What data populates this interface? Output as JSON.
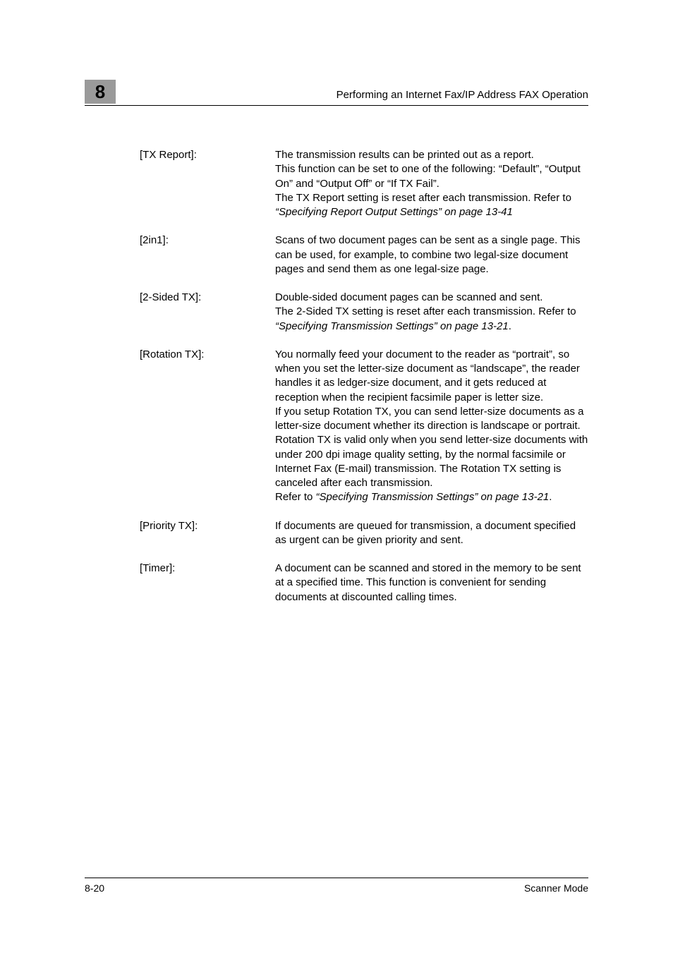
{
  "chapter_number": "8",
  "header_title": "Performing an Internet Fax/IP Address FAX Operation",
  "entries": [
    {
      "term": "[TX Report]:",
      "desc_html": "The transmission results can be printed out as a report.<br>This function can be set to one of the following: “Default”, “Output On” and “Output Off” or “If TX Fail”.<br>The TX Report setting is reset after each transmission. Refer to <span class=\"italic\">“Specifying Report Output Settings” on page 13-41</span>"
    },
    {
      "term": "[2in1]:",
      "desc_html": "Scans of two document pages can be sent as a single page. This can be used, for example, to combine two legal-size document pages and send them as one legal-size page."
    },
    {
      "term": "[2-Sided TX]:",
      "desc_html": "Double-sided document pages can be scanned and sent.<br>The 2-Sided TX setting is reset after each transmission. Refer to <span class=\"italic\">“Specifying Transmission Settings” on page 13-21</span>."
    },
    {
      "term": "[Rotation TX]:",
      "desc_html": "You normally feed your document to the reader as “portrait”, so when you set the letter-size document as “landscape”, the reader handles it as ledger-size document, and it gets reduced at reception when the recipient facsimile paper is letter size.<br>If you setup Rotation TX, you can send letter-size documents as a letter-size document whether its direction is landscape or portrait.  Rotation TX is valid only when you send letter-size documents with under 200 dpi image quality setting, by the normal facsimile or Internet Fax (E-mail) transmission.  The Rotation TX setting is canceled after each transmission.<br>Refer to <span class=\"italic\">“Specifying Transmission Settings” on page 13-21</span>."
    },
    {
      "term": "[Priority TX]:",
      "desc_html": "If documents are queued for transmission, a document specified as urgent can be given priority and sent."
    },
    {
      "term": "[Timer]:",
      "desc_html": "A document can be scanned and stored in the memory to be sent at a specified time. This function is convenient for sending documents at discounted calling times."
    }
  ],
  "footer_left": "8-20",
  "footer_right": "Scanner Mode",
  "colors": {
    "tab_bg": "#9a9a9a",
    "text": "#000000",
    "background": "#ffffff"
  }
}
